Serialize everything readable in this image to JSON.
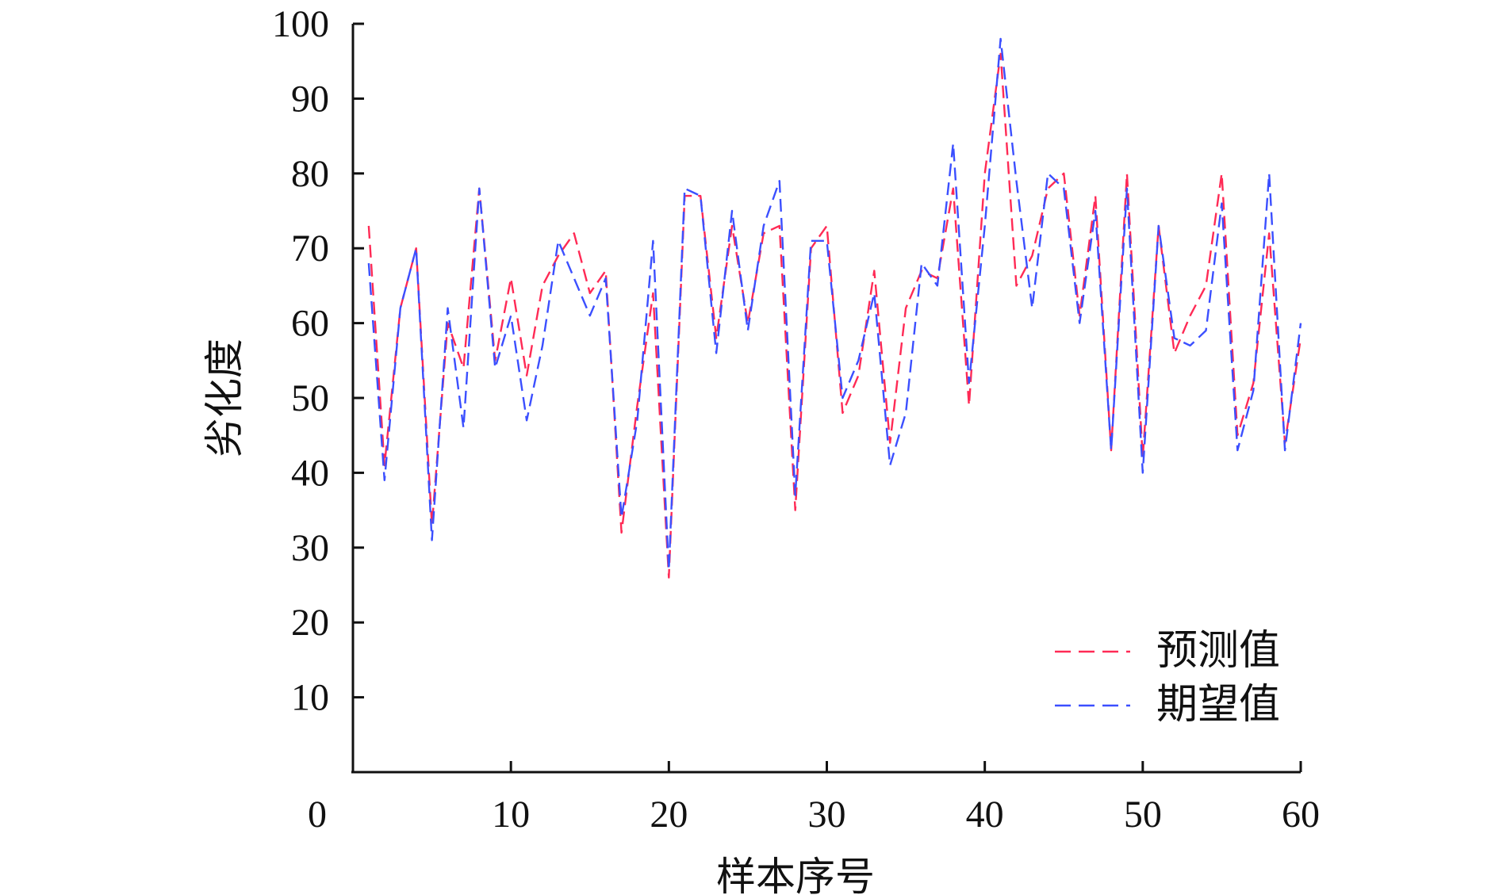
{
  "chart_data": {
    "type": "line",
    "ylabel": "劣化度",
    "xlabel": "样本序号",
    "xlim": [
      0,
      60
    ],
    "ylim": [
      0,
      100
    ],
    "xticks": [
      "0",
      "10",
      "20",
      "30",
      "40",
      "50",
      "60"
    ],
    "yticks": [
      "10",
      "20",
      "30",
      "40",
      "50",
      "60",
      "70",
      "80",
      "90",
      "100"
    ],
    "legend_position": "bottom-right",
    "grid": false,
    "x": [
      1,
      2,
      3,
      4,
      5,
      6,
      7,
      8,
      9,
      10,
      11,
      12,
      13,
      14,
      15,
      16,
      17,
      18,
      19,
      20,
      21,
      22,
      23,
      24,
      25,
      26,
      27,
      28,
      29,
      30,
      31,
      32,
      33,
      34,
      35,
      36,
      37,
      38,
      39,
      40,
      41,
      42,
      43,
      44,
      45,
      46,
      47,
      48,
      49,
      50,
      51,
      52,
      53,
      54,
      55,
      56,
      57,
      58,
      59,
      60
    ],
    "series": [
      {
        "name": "预测值",
        "color": "#ff2a55",
        "values": [
          73,
          41,
          62,
          70,
          33,
          60,
          54,
          78,
          55,
          66,
          53,
          65,
          69,
          72,
          64,
          67,
          32,
          49,
          64,
          26,
          77,
          77,
          58,
          73,
          60,
          72,
          73,
          35,
          70,
          73,
          48,
          53,
          67,
          44,
          62,
          67,
          66,
          78,
          49,
          80,
          96,
          65,
          69,
          78,
          80,
          61,
          77,
          43,
          80,
          42,
          73,
          56,
          61,
          65,
          80,
          45,
          52,
          72,
          44,
          58
        ]
      },
      {
        "name": "期望值",
        "color": "#3b4fff",
        "values": [
          68,
          39,
          62,
          70,
          31,
          62,
          46,
          78,
          54,
          61,
          47,
          57,
          71,
          66,
          61,
          66,
          34,
          47,
          71,
          27,
          78,
          77,
          56,
          75,
          59,
          73,
          79,
          37,
          71,
          71,
          50,
          55,
          64,
          41,
          48,
          68,
          65,
          84,
          52,
          73,
          98,
          79,
          62,
          80,
          78,
          60,
          75,
          43,
          78,
          40,
          73,
          58,
          57,
          59,
          76,
          43,
          51,
          80,
          43,
          60
        ]
      }
    ]
  }
}
